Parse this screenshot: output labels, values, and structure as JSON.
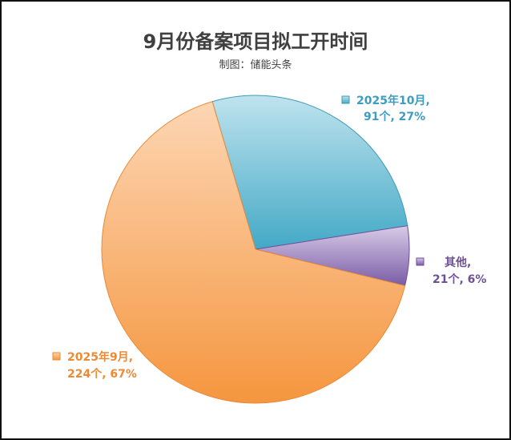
{
  "chart_data": {
    "type": "pie",
    "title": "9月份备案项目拟工开时间",
    "subtitle": "制图：储能头条",
    "slices": [
      {
        "name": "2025年10月",
        "count": 91,
        "unit": "个",
        "percent": "27%",
        "color": "#4badc6",
        "label_line1": "2025年10月,",
        "label_line2": "91个, 27%"
      },
      {
        "name": "其他",
        "count": 21,
        "unit": "个",
        "percent": "6%",
        "color": "#7b5ea6",
        "label_line1": "其他,",
        "label_line2": "21个, 6%"
      },
      {
        "name": "2025年9月",
        "count": 224,
        "unit": "个",
        "percent": "67%",
        "color": "#f59a4a",
        "label_line1": "2025年9月,",
        "label_line2": "224个, 67%"
      }
    ]
  }
}
